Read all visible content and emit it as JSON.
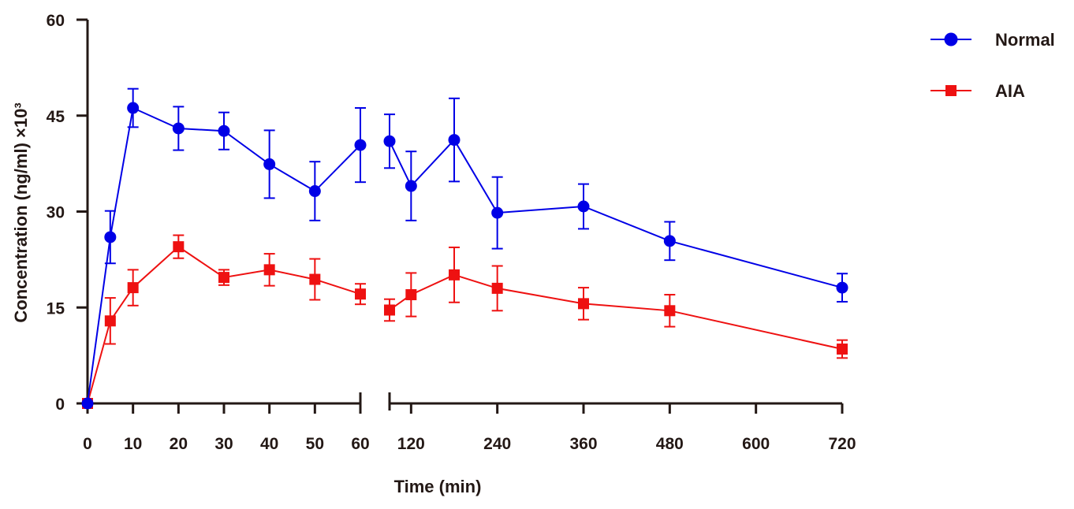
{
  "chart_data": {
    "type": "line",
    "title": "",
    "xlabel": "Time (min)",
    "ylabel": "Concentration (ng/ml) ×10³",
    "ylim": [
      0,
      60
    ],
    "y_ticks": [
      "0",
      "15",
      "30",
      "45",
      "60"
    ],
    "x_axis": {
      "broken": true,
      "segment1": {
        "range": [
          0,
          60
        ],
        "ticks": [
          "0",
          "10",
          "20",
          "30",
          "40",
          "50",
          "60"
        ]
      },
      "segment2": {
        "range": [
          90,
          720
        ],
        "ticks": [
          "120",
          "240",
          "360",
          "480",
          "600",
          "720"
        ]
      }
    },
    "legend_position": "top-right",
    "series": [
      {
        "name": "Normal",
        "color": "#0000e6",
        "marker": "circle",
        "x": [
          0,
          5,
          10,
          20,
          30,
          40,
          50,
          60,
          90,
          120,
          180,
          240,
          360,
          480,
          720
        ],
        "y": [
          0,
          26,
          46.2,
          43,
          42.6,
          37.4,
          33.2,
          40.4,
          41,
          34,
          41.2,
          29.8,
          30.8,
          25.4,
          18.1
        ],
        "err": [
          0,
          4.1,
          3,
          3.4,
          2.9,
          5.3,
          4.6,
          5.8,
          4.2,
          5.4,
          6.5,
          5.6,
          3.5,
          3,
          2.2
        ]
      },
      {
        "name": "AIA",
        "color": "#ee1111",
        "marker": "square",
        "x": [
          0,
          5,
          10,
          20,
          30,
          40,
          50,
          60,
          90,
          120,
          180,
          240,
          360,
          480,
          720
        ],
        "y": [
          0,
          12.9,
          18.1,
          24.5,
          19.7,
          20.9,
          19.4,
          17.1,
          14.6,
          17,
          20.1,
          18,
          15.6,
          14.5,
          8.5
        ],
        "err": [
          0,
          3.6,
          2.8,
          1.8,
          1.2,
          2.5,
          3.2,
          1.6,
          1.7,
          3.4,
          4.3,
          3.5,
          2.5,
          2.5,
          1.4
        ]
      }
    ]
  }
}
